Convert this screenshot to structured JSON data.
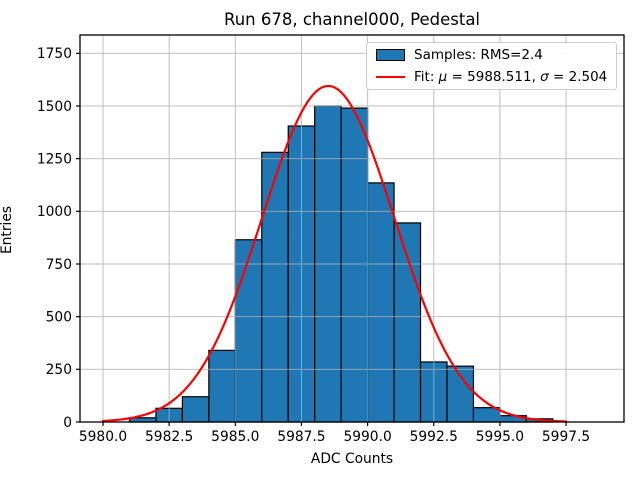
{
  "figure": {
    "title": "Run 678, channel000, Pedestal",
    "xlabel": "ADC Counts",
    "ylabel": "Entries"
  },
  "legend": {
    "samples_label": "Samples: RMS=2.4",
    "fit": {
      "prefix": "Fit: ",
      "mu_symbol": "μ",
      "mu_value": " = 5988.511, ",
      "sigma_symbol": "σ",
      "sigma_value": " = 2.504"
    },
    "swatch_color": "#1f77b4",
    "line_color": "#ff0000"
  },
  "chart_data": {
    "type": "bar",
    "subtype": "histogram",
    "title": "Run 678, channel000, Pedestal",
    "xlabel": "ADC Counts",
    "ylabel": "Entries",
    "bin_width": 1,
    "bin_left_edges": [
      5981,
      5982,
      5983,
      5984,
      5985,
      5986,
      5987,
      5988,
      5989,
      5990,
      5991,
      5992,
      5993,
      5994,
      5995,
      5996
    ],
    "values": [
      20,
      65,
      120,
      340,
      865,
      1280,
      1405,
      1500,
      1490,
      1135,
      945,
      285,
      265,
      68,
      30,
      15
    ],
    "xlim": [
      5979.13,
      5999.69
    ],
    "ylim": [
      0,
      1837
    ],
    "xticks": [
      5980.0,
      5982.5,
      5985.0,
      5987.5,
      5990.0,
      5992.5,
      5995.0,
      5997.5
    ],
    "xtick_labels": [
      "5980.0",
      "5982.5",
      "5985.0",
      "5987.5",
      "5990.0",
      "5992.5",
      "5995.0",
      "5997.5"
    ],
    "yticks": [
      0,
      250,
      500,
      750,
      1000,
      1250,
      1500,
      1750
    ],
    "ytick_labels": [
      "0",
      "250",
      "500",
      "750",
      "1000",
      "1250",
      "1500",
      "1750"
    ],
    "grid": true,
    "grid_color": "#b0b0b0",
    "legend_position": "upper right",
    "series": [
      {
        "name": "Samples: RMS=2.4",
        "type": "histogram",
        "fill_color": "#1f77b4",
        "edge_color": "#000000"
      },
      {
        "name": "Fit: μ = 5988.511, σ = 2.504",
        "type": "gaussian-fit",
        "color": "#ff0000",
        "mu": 5988.511,
        "sigma": 2.504,
        "amplitude": 1595,
        "x_range": [
          5980.0,
          5997.5
        ]
      }
    ]
  }
}
